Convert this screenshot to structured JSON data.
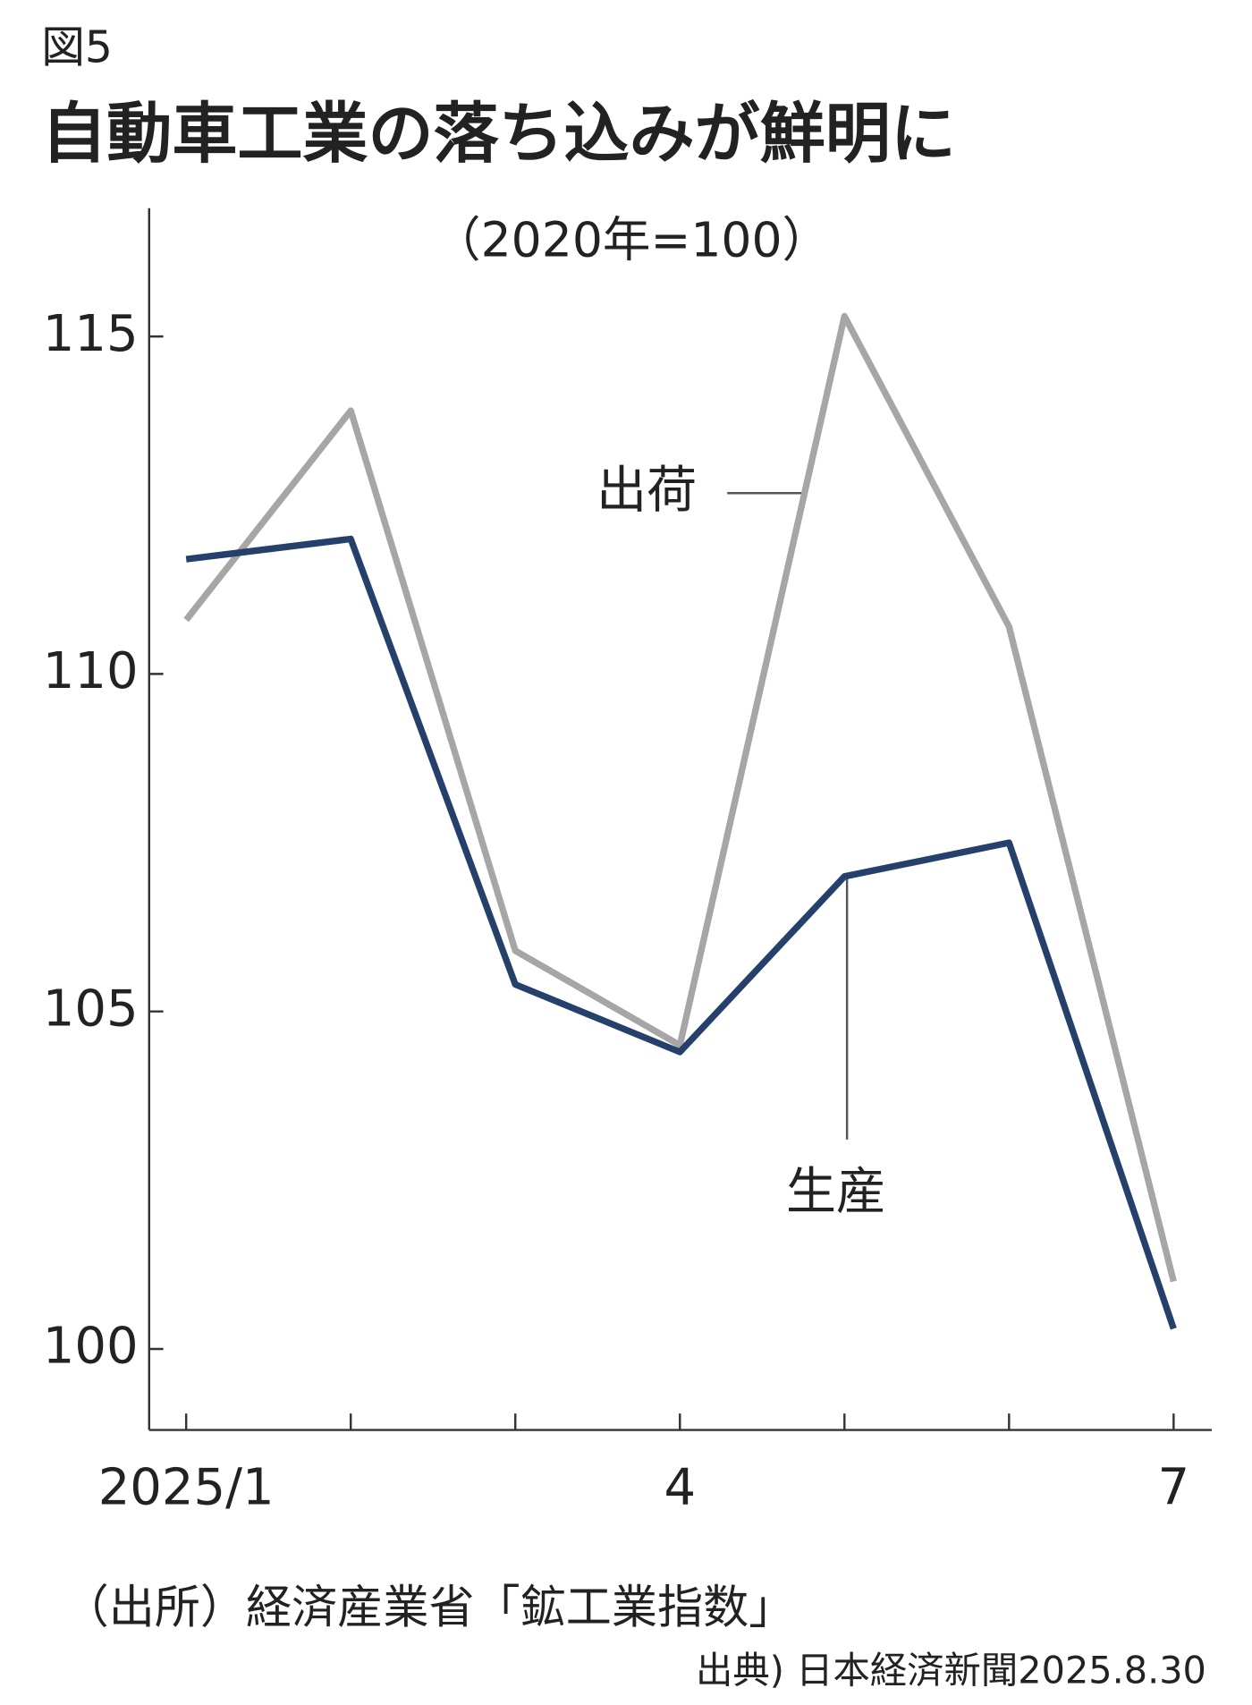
{
  "chart_data": {
    "type": "line",
    "label": "図5",
    "title": "自動車工業の落ち込みが鮮明に",
    "subtitle": "（2020年=100）",
    "categories": [
      "2025/1",
      null,
      null,
      "4",
      null,
      null,
      "7"
    ],
    "series": [
      {
        "name": "出荷",
        "color": "#a6a6a6",
        "values": [
          110.8,
          113.9,
          105.9,
          104.5,
          115.3,
          110.7,
          101.0
        ]
      },
      {
        "name": "生産",
        "color": "#25406b",
        "values": [
          111.7,
          112.0,
          105.4,
          104.4,
          107.0,
          107.5,
          100.3
        ]
      }
    ],
    "ylim": [
      98.8,
      116.9
    ],
    "yticks": [
      100,
      105,
      110,
      115
    ],
    "source": "（出所）経済産業省「鉱工業指数」",
    "credit": "出典) 日本経済新聞2025.8.30"
  }
}
